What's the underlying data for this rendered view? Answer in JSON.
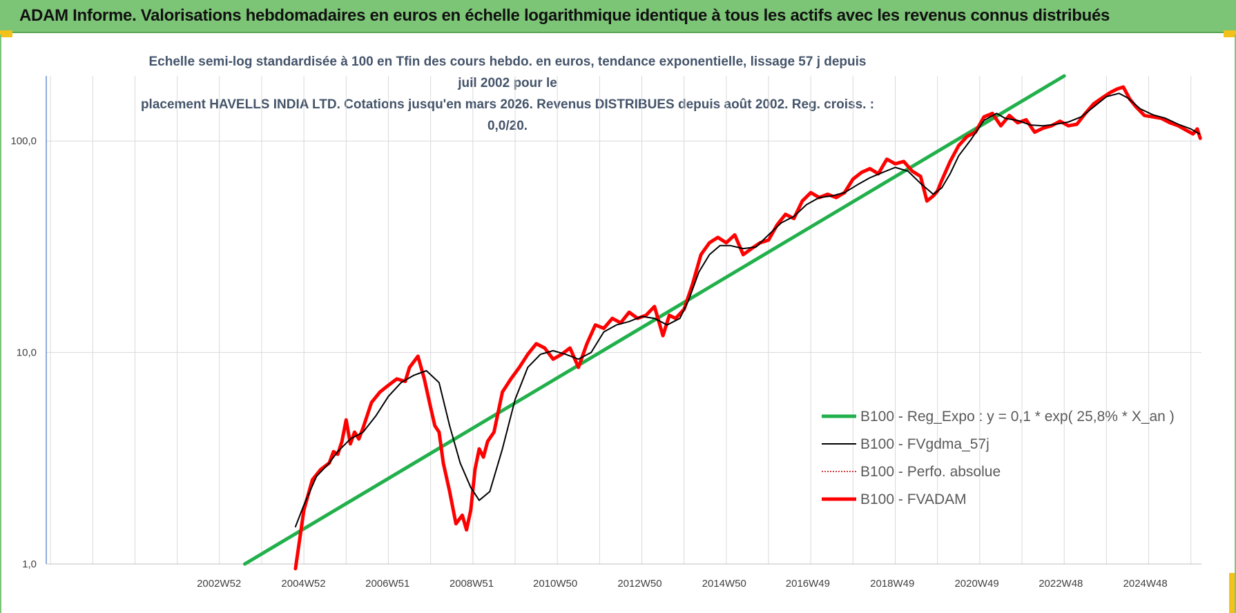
{
  "header": {
    "title": "ADAM Informe. Valorisations hebdomadaires en euros en échelle logarithmique identique à tous les actifs avec les revenus connus distribués"
  },
  "chart_data": {
    "type": "line",
    "title_line1": "Echelle semi-log standardisée à 100 en Tfin des cours hebdo. en euros, tendance exponentielle, lissage 57 j depuis juil 2002 pour le",
    "title_line2": "placement HAVELLS INDIA LTD. Cotations jusqu'en mars 2026. Revenus DISTRIBUES depuis août 2002. Reg. croiss. : 0,0/20.",
    "y_scale": "log",
    "ylim": [
      1,
      200
    ],
    "y_ticks": [
      {
        "value": 1,
        "label": "1,0"
      },
      {
        "value": 10,
        "label": "10,0"
      },
      {
        "value": 100,
        "label": "100,0"
      }
    ],
    "xlim": [
      1998.9,
      2026.25
    ],
    "x_tick_labels": [
      {
        "year": 2002.99,
        "label": "2002W52"
      },
      {
        "year": 2004.99,
        "label": "2004W52"
      },
      {
        "year": 2006.98,
        "label": "2006W51"
      },
      {
        "year": 2008.97,
        "label": "2008W51"
      },
      {
        "year": 2010.95,
        "label": "2010W50"
      },
      {
        "year": 2012.95,
        "label": "2012W50"
      },
      {
        "year": 2014.95,
        "label": "2014W50"
      },
      {
        "year": 2016.93,
        "label": "2016W49"
      },
      {
        "year": 2018.93,
        "label": "2018W49"
      },
      {
        "year": 2020.93,
        "label": "2020W49"
      },
      {
        "year": 2022.92,
        "label": "2022W48"
      },
      {
        "year": 2024.92,
        "label": "2024W48"
      }
    ],
    "grid": "vertical gridlines every year, horizontal at decades",
    "legend_position": "bottom-right",
    "series": [
      {
        "name": "B100 - Reg_Expo : y = 0,1 * exp( 25,8% *  X_an )",
        "color": "#21b04b",
        "style": "thick",
        "x": [
          2003.6,
          2023.0
        ],
        "y": [
          1.0,
          203
        ]
      },
      {
        "name": "B100 - FVgdma_57j",
        "color": "#000000",
        "style": "thin",
        "x": [
          2004.8,
          2005.0,
          2005.3,
          2005.6,
          2005.8,
          2006.1,
          2006.4,
          2006.7,
          2007.0,
          2007.3,
          2007.6,
          2007.9,
          2008.2,
          2008.45,
          2008.7,
          2008.95,
          2009.15,
          2009.4,
          2009.7,
          2010.0,
          2010.3,
          2010.6,
          2010.9,
          2011.2,
          2011.5,
          2011.8,
          2012.1,
          2012.4,
          2012.7,
          2013.0,
          2013.3,
          2013.6,
          2013.9,
          2014.1,
          2014.35,
          2014.6,
          2014.85,
          2015.1,
          2015.4,
          2015.7,
          2016.0,
          2016.3,
          2016.6,
          2016.9,
          2017.2,
          2017.5,
          2017.8,
          2018.1,
          2018.4,
          2018.7,
          2019.0,
          2019.3,
          2019.6,
          2019.9,
          2020.1,
          2020.3,
          2020.5,
          2020.8,
          2021.1,
          2021.4,
          2021.6,
          2021.9,
          2022.2,
          2022.5,
          2022.8,
          2023.1,
          2023.4,
          2023.7,
          2024.0,
          2024.3,
          2024.5,
          2024.8,
          2025.1,
          2025.4,
          2025.7,
          2026.0,
          2026.2
        ],
        "y": [
          1.5,
          1.9,
          2.6,
          3.0,
          3.4,
          3.9,
          4.2,
          5.0,
          6.2,
          7.2,
          7.8,
          8.2,
          7.2,
          4.5,
          3.0,
          2.3,
          2.0,
          2.2,
          3.5,
          6.0,
          8.5,
          9.8,
          10.2,
          9.8,
          9.3,
          10.0,
          12.5,
          13.5,
          14.0,
          14.8,
          14.5,
          13.5,
          14.5,
          17.5,
          24.0,
          29.0,
          32.0,
          32.0,
          31.0,
          31.5,
          36.0,
          41.0,
          44.0,
          50.0,
          54.0,
          55.0,
          57.0,
          62.0,
          67.0,
          71.0,
          75.0,
          72.0,
          63.0,
          56.0,
          60.0,
          70.0,
          85.0,
          102.0,
          125.0,
          135.0,
          128.0,
          125.0,
          119.0,
          118.0,
          120.0,
          123.0,
          130.0,
          145.0,
          162.0,
          168.0,
          160.0,
          142.0,
          133.0,
          128.0,
          120.0,
          114.0,
          108.0
        ]
      },
      {
        "name": "B100 - Perfo. absolue",
        "color": "#c00000",
        "style": "dotted",
        "x": [],
        "y": []
      },
      {
        "name": "B100 - FVADAM",
        "color": "#ff0000",
        "style": "thick",
        "x": [
          2004.8,
          2005.0,
          2005.2,
          2005.4,
          2005.6,
          2005.7,
          2005.8,
          2005.9,
          2006.0,
          2006.1,
          2006.2,
          2006.3,
          2006.4,
          2006.6,
          2006.8,
          2007.0,
          2007.2,
          2007.4,
          2007.5,
          2007.7,
          2007.85,
          2008.0,
          2008.1,
          2008.2,
          2008.3,
          2008.45,
          2008.6,
          2008.75,
          2008.85,
          2008.95,
          2009.05,
          2009.15,
          2009.25,
          2009.35,
          2009.5,
          2009.7,
          2009.9,
          2010.1,
          2010.3,
          2010.5,
          2010.7,
          2010.9,
          2011.1,
          2011.3,
          2011.5,
          2011.7,
          2011.9,
          2012.1,
          2012.3,
          2012.5,
          2012.7,
          2012.9,
          2013.1,
          2013.3,
          2013.5,
          2013.65,
          2013.8,
          2014.0,
          2014.2,
          2014.4,
          2014.6,
          2014.8,
          2015.0,
          2015.2,
          2015.4,
          2015.6,
          2015.8,
          2016.0,
          2016.2,
          2016.4,
          2016.6,
          2016.8,
          2017.0,
          2017.2,
          2017.4,
          2017.6,
          2017.8,
          2018.0,
          2018.2,
          2018.4,
          2018.6,
          2018.8,
          2019.0,
          2019.2,
          2019.4,
          2019.6,
          2019.75,
          2019.9,
          2020.0,
          2020.1,
          2020.3,
          2020.5,
          2020.7,
          2020.9,
          2021.1,
          2021.3,
          2021.5,
          2021.7,
          2021.9,
          2022.1,
          2022.3,
          2022.5,
          2022.7,
          2022.9,
          2023.1,
          2023.3,
          2023.5,
          2023.7,
          2023.9,
          2024.1,
          2024.25,
          2024.4,
          2024.55,
          2024.7,
          2024.9,
          2025.1,
          2025.3,
          2025.5,
          2025.7,
          2025.9,
          2026.05,
          2026.15,
          2026.22
        ],
        "y": [
          0.95,
          1.8,
          2.5,
          2.8,
          3.0,
          3.4,
          3.3,
          3.8,
          4.8,
          3.7,
          4.2,
          3.9,
          4.4,
          5.8,
          6.5,
          7.0,
          7.5,
          7.3,
          8.5,
          9.6,
          7.5,
          5.5,
          4.5,
          4.2,
          3.0,
          2.2,
          1.55,
          1.7,
          1.45,
          1.8,
          2.8,
          3.5,
          3.2,
          3.8,
          4.2,
          6.5,
          7.5,
          8.5,
          9.8,
          11.0,
          10.5,
          9.3,
          9.8,
          10.5,
          8.5,
          11.0,
          13.5,
          13.0,
          14.5,
          13.8,
          15.5,
          14.5,
          15.0,
          16.5,
          12.0,
          15.0,
          14.5,
          16.0,
          21.0,
          29.0,
          33.0,
          35.0,
          33.0,
          36.0,
          29.0,
          31.0,
          33.0,
          34.0,
          40.0,
          45.0,
          43.0,
          52.0,
          57.0,
          54.0,
          56.0,
          54.0,
          57.0,
          66.0,
          71.0,
          74.0,
          70.0,
          82.0,
          78.0,
          80.0,
          72.0,
          68.0,
          52.0,
          55.0,
          58.0,
          65.0,
          80.0,
          95.0,
          105.0,
          110.0,
          130.0,
          135.0,
          118.0,
          132.0,
          122.0,
          126.0,
          110.0,
          115.0,
          118.0,
          124.0,
          118.0,
          120.0,
          135.0,
          150.0,
          160.0,
          170.0,
          176.0,
          180.0,
          158.0,
          145.0,
          132.0,
          130.0,
          128.0,
          122.0,
          118.0,
          112.0,
          108.0,
          114.0,
          103.0
        ]
      }
    ]
  }
}
